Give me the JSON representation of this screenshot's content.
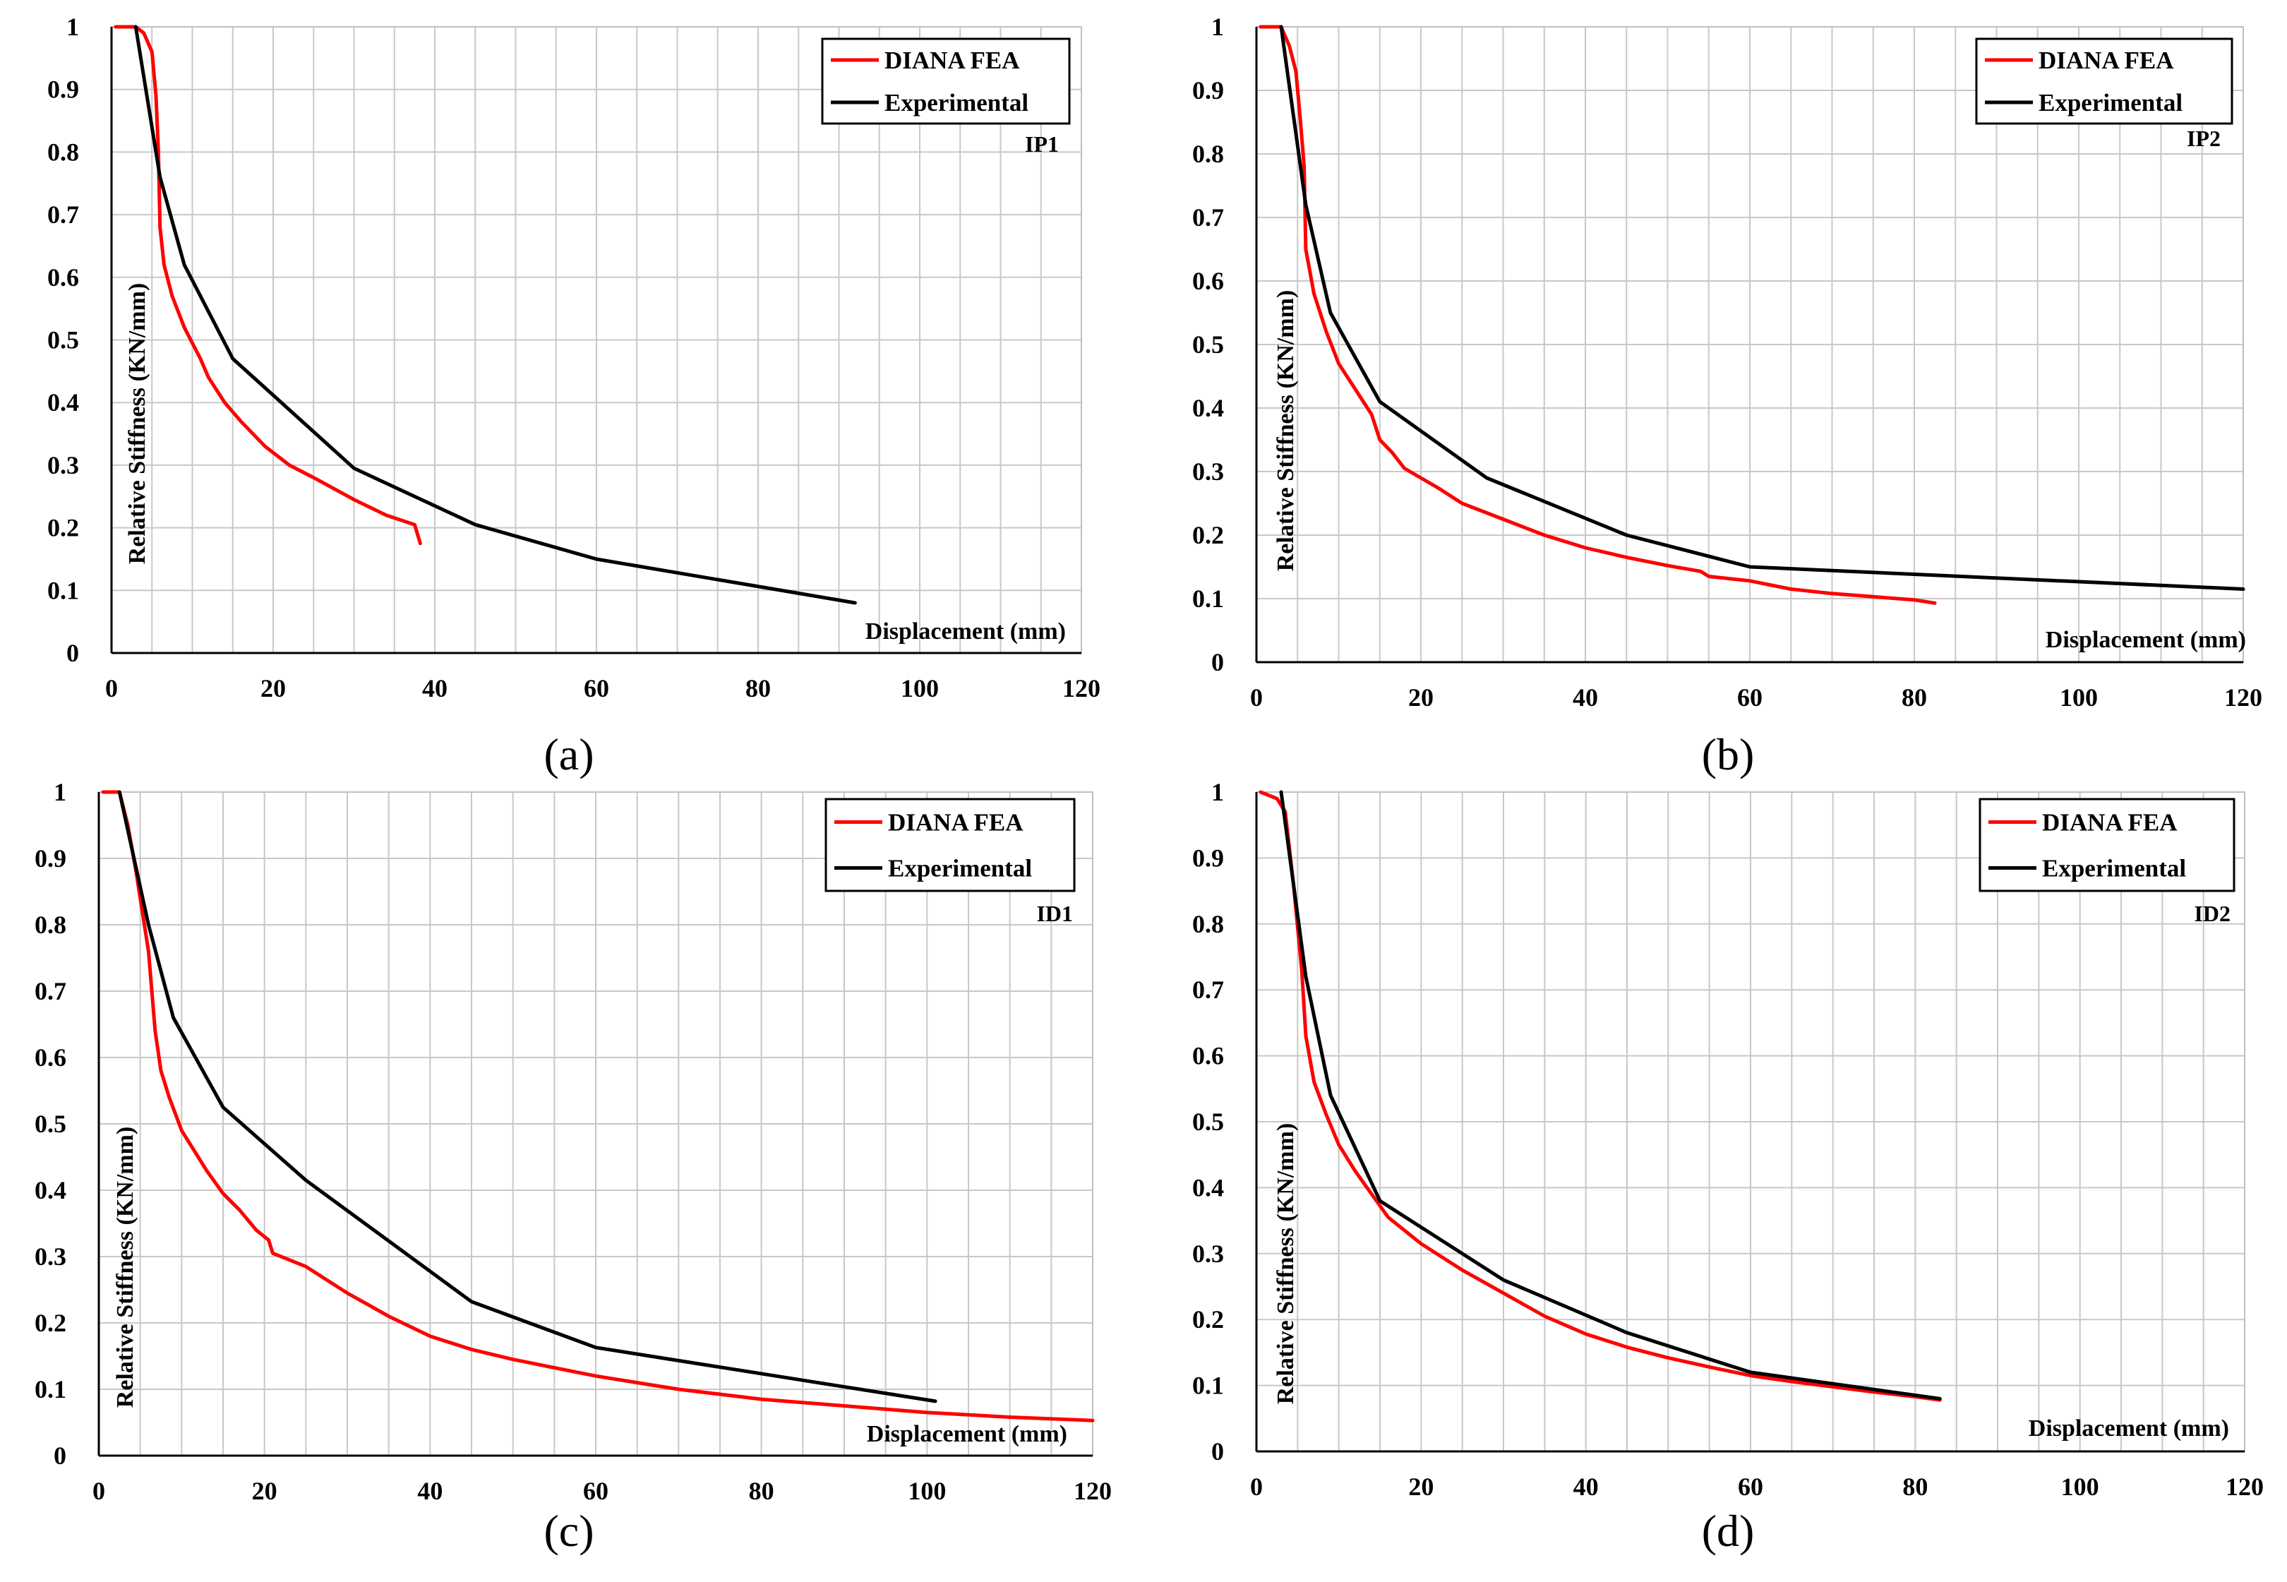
{
  "colors": {
    "fea": "#ff0000",
    "experimental": "#000000",
    "grid": "#c8c8c8"
  },
  "chart_data": [
    {
      "type": "line",
      "caption": "(a)",
      "tag": "IP1",
      "xlabel": "Displacement (mm)",
      "ylabel": "Relative Stiffness (KN/mm)",
      "xlim": [
        0,
        120
      ],
      "ylim": [
        0,
        1
      ],
      "xticks": [
        "0",
        "20",
        "40",
        "60",
        "80",
        "100",
        "120"
      ],
      "yticks": [
        "0",
        "0.1",
        "0.2",
        "0.3",
        "0.4",
        "0.5",
        "0.6",
        "0.7",
        "0.8",
        "0.9",
        "1"
      ],
      "legend": [
        "DIANA FEA",
        "Experimental"
      ],
      "series": [
        {
          "name": "DIANA FEA",
          "x": [
            0.5,
            3,
            4,
            5,
            5.5,
            5.8,
            6,
            6.5,
            7.5,
            9,
            11,
            12,
            14,
            16,
            19,
            22,
            25,
            30,
            34,
            37.5,
            38.2
          ],
          "y": [
            1,
            1.0,
            0.99,
            0.96,
            0.89,
            0.8,
            0.68,
            0.62,
            0.57,
            0.52,
            0.47,
            0.44,
            0.4,
            0.37,
            0.33,
            0.3,
            0.28,
            0.245,
            0.22,
            0.205,
            0.175
          ]
        },
        {
          "name": "Experimental",
          "x": [
            3,
            6,
            9,
            15,
            30,
            45,
            60,
            92
          ],
          "y": [
            1,
            0.76,
            0.62,
            0.47,
            0.295,
            0.205,
            0.15,
            0.08
          ]
        }
      ]
    },
    {
      "type": "line",
      "caption": "(b)",
      "tag": "IP2",
      "xlabel": "Displacement (mm)",
      "ylabel": "Relative Stiffness (KN/mm)",
      "xlim": [
        0,
        120
      ],
      "ylim": [
        0,
        1
      ],
      "xticks": [
        "0",
        "20",
        "40",
        "60",
        "80",
        "100",
        "120"
      ],
      "yticks": [
        "0",
        "0.1",
        "0.2",
        "0.3",
        "0.4",
        "0.5",
        "0.6",
        "0.7",
        "0.8",
        "0.9",
        "1"
      ],
      "legend": [
        "DIANA FEA",
        "Experimental"
      ],
      "series": [
        {
          "name": "DIANA FEA",
          "x": [
            0.5,
            3,
            4,
            4.8,
            5.3,
            5.8,
            6,
            7,
            8.5,
            10,
            12,
            14,
            15,
            16.5,
            18,
            22,
            25,
            30,
            35,
            40,
            45,
            50,
            54,
            55,
            60,
            65,
            70,
            75,
            80,
            82.5
          ],
          "y": [
            1,
            1.0,
            0.97,
            0.93,
            0.86,
            0.78,
            0.65,
            0.58,
            0.52,
            0.47,
            0.43,
            0.39,
            0.35,
            0.33,
            0.305,
            0.275,
            0.25,
            0.225,
            0.2,
            0.18,
            0.165,
            0.152,
            0.143,
            0.135,
            0.128,
            0.115,
            0.108,
            0.103,
            0.098,
            0.093
          ]
        },
        {
          "name": "Experimental",
          "x": [
            3,
            6,
            9,
            15,
            28,
            45,
            60,
            120
          ],
          "y": [
            1,
            0.72,
            0.55,
            0.41,
            0.29,
            0.2,
            0.15,
            0.115
          ]
        }
      ]
    },
    {
      "type": "line",
      "caption": "(c)",
      "tag": "ID1",
      "xlabel": "Displacement (mm)",
      "ylabel": "Relative Stiffness (KN/mm)",
      "xlim": [
        0,
        120
      ],
      "ylim": [
        0,
        1
      ],
      "xticks": [
        "0",
        "20",
        "40",
        "60",
        "80",
        "100",
        "120"
      ],
      "yticks": [
        "0",
        "0.1",
        "0.2",
        "0.3",
        "0.4",
        "0.5",
        "0.6",
        "0.7",
        "0.8",
        "0.9",
        "1"
      ],
      "legend": [
        "DIANA FEA",
        "Experimental"
      ],
      "series": [
        {
          "name": "DIANA FEA",
          "x": [
            0.5,
            2.5,
            3.5,
            4.5,
            6,
            6.8,
            7.5,
            8.5,
            10,
            11.5,
            13,
            15,
            17,
            19,
            20.5,
            21,
            25,
            30,
            35,
            40,
            45,
            50,
            60,
            70,
            80,
            90,
            100,
            110,
            120
          ],
          "y": [
            1,
            1.0,
            0.95,
            0.88,
            0.76,
            0.64,
            0.58,
            0.54,
            0.49,
            0.46,
            0.43,
            0.395,
            0.37,
            0.34,
            0.325,
            0.305,
            0.285,
            0.245,
            0.21,
            0.18,
            0.16,
            0.145,
            0.12,
            0.1,
            0.085,
            0.075,
            0.065,
            0.058,
            0.053
          ]
        },
        {
          "name": "Experimental",
          "x": [
            2.5,
            6,
            9,
            15,
            25,
            45,
            60,
            101
          ],
          "y": [
            1,
            0.8,
            0.66,
            0.525,
            0.415,
            0.232,
            0.163,
            0.082
          ]
        }
      ]
    },
    {
      "type": "line",
      "caption": "(d)",
      "tag": "ID2",
      "xlabel": "Displacement (mm)",
      "ylabel": "Relative Stiffness (KN/mm)",
      "xlim": [
        0,
        120
      ],
      "ylim": [
        0,
        1
      ],
      "xticks": [
        "0",
        "20",
        "40",
        "60",
        "80",
        "100",
        "120"
      ],
      "yticks": [
        "0",
        "0.1",
        "0.2",
        "0.3",
        "0.4",
        "0.5",
        "0.6",
        "0.7",
        "0.8",
        "0.9",
        "1"
      ],
      "legend": [
        "DIANA FEA",
        "Experimental"
      ],
      "series": [
        {
          "name": "DIANA FEA",
          "x": [
            0.5,
            2.5,
            3.5,
            4.5,
            5.5,
            6,
            7,
            8.5,
            10,
            12,
            14,
            16,
            20,
            25,
            30,
            35,
            40,
            45,
            50,
            55,
            60,
            65,
            70,
            75,
            80,
            83
          ],
          "y": [
            1,
            0.99,
            0.97,
            0.86,
            0.73,
            0.63,
            0.56,
            0.51,
            0.465,
            0.425,
            0.39,
            0.355,
            0.315,
            0.275,
            0.24,
            0.205,
            0.178,
            0.158,
            0.142,
            0.128,
            0.115,
            0.106,
            0.098,
            0.09,
            0.083,
            0.078
          ]
        },
        {
          "name": "Experimental",
          "x": [
            3,
            6,
            9,
            15,
            30,
            45,
            60,
            83
          ],
          "y": [
            1,
            0.72,
            0.54,
            0.38,
            0.26,
            0.18,
            0.12,
            0.08
          ]
        }
      ]
    }
  ]
}
